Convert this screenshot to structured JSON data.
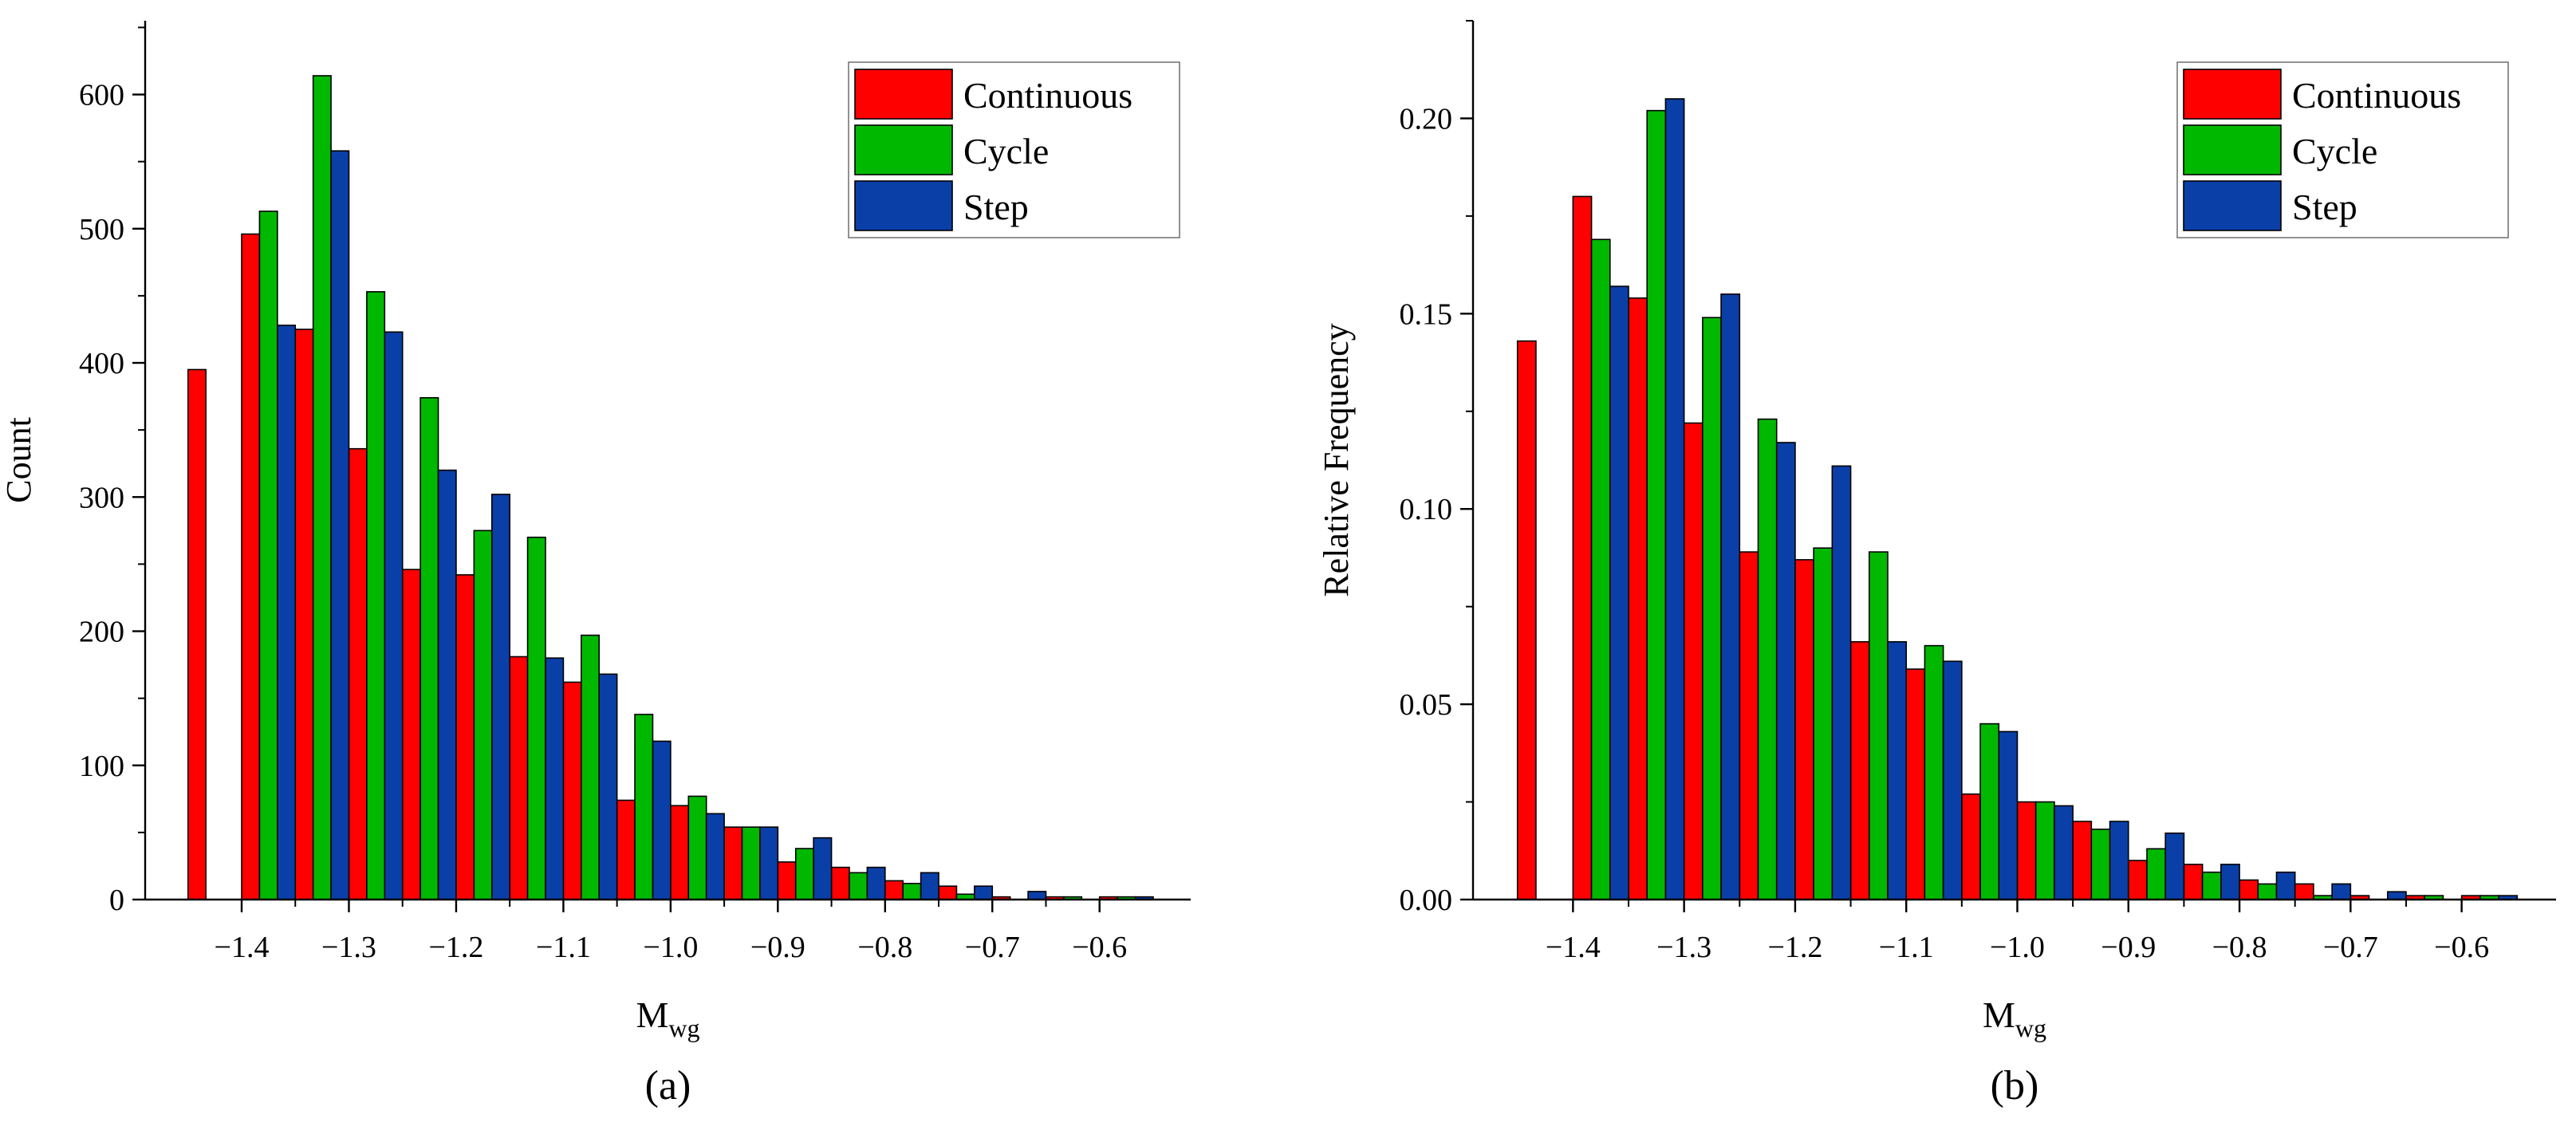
{
  "colors": {
    "Continuous": "#ff0000",
    "Cycle": "#00b800",
    "Step": "#0a3fa8",
    "axis": "#000000"
  },
  "chart_data": [
    {
      "type": "bar",
      "panel_label": "(a)",
      "xlabel_main": "M",
      "xlabel_sub": "wg",
      "ylabel": "Count",
      "xlim": [
        -1.49,
        -0.515
      ],
      "ylim": [
        0,
        655
      ],
      "xticks": [
        -1.4,
        -1.3,
        -1.2,
        -1.1,
        -1.0,
        -0.9,
        -0.8,
        -0.7,
        -0.6
      ],
      "xtick_labels": [
        "−1.4",
        "−1.3",
        "−1.2",
        "−1.1",
        "−1.0",
        "−0.9",
        "−0.8",
        "−0.7",
        "−0.6"
      ],
      "yticks": [
        0,
        100,
        200,
        300,
        400,
        500,
        600
      ],
      "ytick_labels": [
        "0",
        "100",
        "200",
        "300",
        "400",
        "500",
        "600"
      ],
      "bin_width": 0.05,
      "bins": [
        -1.425,
        -1.375,
        -1.325,
        -1.275,
        -1.225,
        -1.175,
        -1.125,
        -1.075,
        -1.025,
        -0.975,
        -0.925,
        -0.875,
        -0.825,
        -0.775,
        -0.725,
        -0.675,
        -0.625,
        -0.575
      ],
      "series": [
        {
          "name": "Continuous",
          "values": [
            395,
            496,
            425,
            336,
            246,
            242,
            181,
            162,
            74,
            70,
            54,
            28,
            24,
            14,
            10,
            2,
            2,
            2
          ]
        },
        {
          "name": "Cycle",
          "values": [
            0,
            513,
            614,
            453,
            374,
            275,
            270,
            197,
            138,
            77,
            54,
            38,
            20,
            12,
            4,
            0,
            2,
            2
          ]
        },
        {
          "name": "Step",
          "values": [
            0,
            428,
            558,
            423,
            320,
            302,
            180,
            168,
            118,
            64,
            54,
            46,
            24,
            20,
            10,
            6,
            0,
            2
          ]
        }
      ],
      "legend": {
        "position": "top-right",
        "entries": [
          "Continuous",
          "Cycle",
          "Step"
        ]
      }
    },
    {
      "type": "bar",
      "panel_label": "(b)",
      "xlabel_main": "M",
      "xlabel_sub": "wg",
      "ylabel": "Relative Frequency",
      "xlim": [
        -1.49,
        -0.515
      ],
      "ylim": [
        0,
        0.225
      ],
      "xticks": [
        -1.4,
        -1.3,
        -1.2,
        -1.1,
        -1.0,
        -0.9,
        -0.8,
        -0.7,
        -0.6
      ],
      "xtick_labels": [
        "−1.4",
        "−1.3",
        "−1.2",
        "−1.1",
        "−1.0",
        "−0.9",
        "−0.8",
        "−0.7",
        "−0.6"
      ],
      "yticks": [
        0,
        0.05,
        0.1,
        0.15,
        0.2
      ],
      "ytick_labels": [
        "0.00",
        "0.05",
        "0.10",
        "0.15",
        "0.20"
      ],
      "bin_width": 0.05,
      "bins": [
        -1.425,
        -1.375,
        -1.325,
        -1.275,
        -1.225,
        -1.175,
        -1.125,
        -1.075,
        -1.025,
        -0.975,
        -0.925,
        -0.875,
        -0.825,
        -0.775,
        -0.725,
        -0.675,
        -0.625,
        -0.575
      ],
      "series": [
        {
          "name": "Continuous",
          "values": [
            0.143,
            0.18,
            0.154,
            0.122,
            0.089,
            0.087,
            0.066,
            0.059,
            0.027,
            0.025,
            0.02,
            0.01,
            0.009,
            0.005,
            0.004,
            0.001,
            0.001,
            0.001
          ]
        },
        {
          "name": "Cycle",
          "values": [
            0,
            0.169,
            0.202,
            0.149,
            0.123,
            0.09,
            0.089,
            0.065,
            0.045,
            0.025,
            0.018,
            0.013,
            0.007,
            0.004,
            0.001,
            0,
            0.001,
            0.001
          ]
        },
        {
          "name": "Step",
          "values": [
            0,
            0.157,
            0.205,
            0.155,
            0.117,
            0.111,
            0.066,
            0.061,
            0.043,
            0.024,
            0.02,
            0.017,
            0.009,
            0.007,
            0.004,
            0.002,
            0,
            0.001
          ]
        }
      ],
      "legend": {
        "position": "top-right",
        "entries": [
          "Continuous",
          "Cycle",
          "Step"
        ]
      }
    }
  ]
}
